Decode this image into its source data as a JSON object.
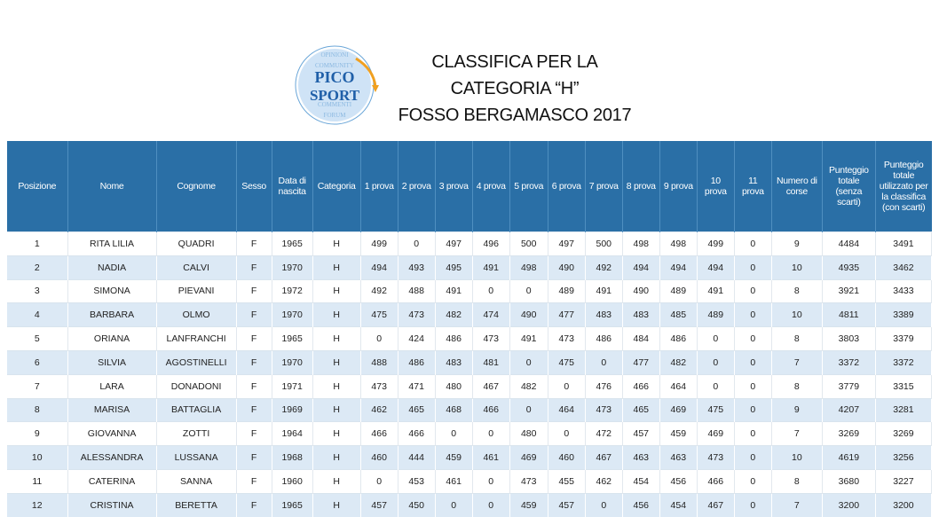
{
  "header": {
    "title_line1": "CLASSIFICA PER LA",
    "title_line2": "CATEGORIA “H”",
    "title_line3": "FOSSO BERGAMASCO 2017",
    "logo_text_top": "PICO",
    "logo_text_bottom": "SPORT",
    "logo_text_back_1": "OPINIONI",
    "logo_text_back_2": "COMMUNITY",
    "logo_text_back_3": "COMMENTI",
    "logo_text_back_4": "FORUM"
  },
  "table": {
    "columns": [
      "Posizione",
      "Nome",
      "Cognome",
      "Sesso",
      "Data di nascita",
      "Categoria",
      "1 prova",
      "2 prova",
      "3 prova",
      "4 prova",
      "5 prova",
      "6 prova",
      "7 prova",
      "8 prova",
      "9 prova",
      "10 prova",
      "11 prova",
      "Numero di corse",
      "Punteggio totale (senza scarti)",
      "Punteggio totale utilizzato per la classifica (con scarti)"
    ],
    "rows": [
      [
        "1",
        "RITA LILIA",
        "QUADRI",
        "F",
        "1965",
        "H",
        "499",
        "0",
        "497",
        "496",
        "500",
        "497",
        "500",
        "498",
        "498",
        "499",
        "0",
        "9",
        "4484",
        "3491"
      ],
      [
        "2",
        "NADIA",
        "CALVI",
        "F",
        "1970",
        "H",
        "494",
        "493",
        "495",
        "491",
        "498",
        "490",
        "492",
        "494",
        "494",
        "494",
        "0",
        "10",
        "4935",
        "3462"
      ],
      [
        "3",
        "SIMONA",
        "PIEVANI",
        "F",
        "1972",
        "H",
        "492",
        "488",
        "491",
        "0",
        "0",
        "489",
        "491",
        "490",
        "489",
        "491",
        "0",
        "8",
        "3921",
        "3433"
      ],
      [
        "4",
        "BARBARA",
        "OLMO",
        "F",
        "1970",
        "H",
        "475",
        "473",
        "482",
        "474",
        "490",
        "477",
        "483",
        "483",
        "485",
        "489",
        "0",
        "10",
        "4811",
        "3389"
      ],
      [
        "5",
        "ORIANA",
        "LANFRANCHI",
        "F",
        "1965",
        "H",
        "0",
        "424",
        "486",
        "473",
        "491",
        "473",
        "486",
        "484",
        "486",
        "0",
        "0",
        "8",
        "3803",
        "3379"
      ],
      [
        "6",
        "SILVIA",
        "AGOSTINELLI",
        "F",
        "1970",
        "H",
        "488",
        "486",
        "483",
        "481",
        "0",
        "475",
        "0",
        "477",
        "482",
        "0",
        "0",
        "7",
        "3372",
        "3372"
      ],
      [
        "7",
        "LARA",
        "DONADONI",
        "F",
        "1971",
        "H",
        "473",
        "471",
        "480",
        "467",
        "482",
        "0",
        "476",
        "466",
        "464",
        "0",
        "0",
        "8",
        "3779",
        "3315"
      ],
      [
        "8",
        "MARISA",
        "BATTAGLIA",
        "F",
        "1969",
        "H",
        "462",
        "465",
        "468",
        "466",
        "0",
        "464",
        "473",
        "465",
        "469",
        "475",
        "0",
        "9",
        "4207",
        "3281"
      ],
      [
        "9",
        "GIOVANNA",
        "ZOTTI",
        "F",
        "1964",
        "H",
        "466",
        "466",
        "0",
        "0",
        "480",
        "0",
        "472",
        "457",
        "459",
        "469",
        "0",
        "7",
        "3269",
        "3269"
      ],
      [
        "10",
        "ALESSANDRA",
        "LUSSANA",
        "F",
        "1968",
        "H",
        "460",
        "444",
        "459",
        "461",
        "469",
        "460",
        "467",
        "463",
        "463",
        "473",
        "0",
        "10",
        "4619",
        "3256"
      ],
      [
        "11",
        "CATERINA",
        "SANNA",
        "F",
        "1960",
        "H",
        "0",
        "453",
        "461",
        "0",
        "473",
        "455",
        "462",
        "454",
        "456",
        "466",
        "0",
        "8",
        "3680",
        "3227"
      ],
      [
        "12",
        "CRISTINA",
        "BERETTA",
        "F",
        "1965",
        "H",
        "457",
        "450",
        "0",
        "0",
        "459",
        "457",
        "0",
        "456",
        "454",
        "467",
        "0",
        "7",
        "3200",
        "3200"
      ]
    ]
  },
  "colors": {
    "header_bg": "#2a6fa6",
    "row_alt_bg": "#dce9f5",
    "logo_blue": "#1f5fa8",
    "logo_orange": "#f0a020"
  }
}
